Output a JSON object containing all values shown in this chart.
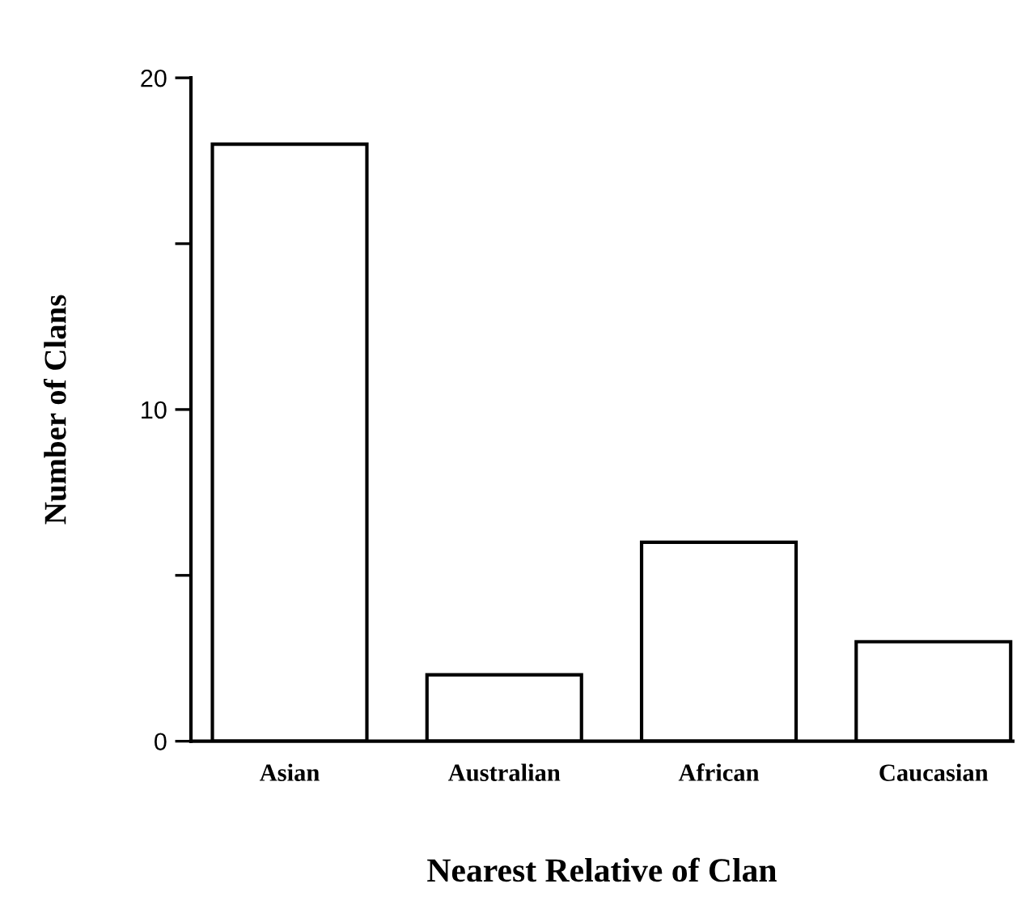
{
  "chart_data": {
    "type": "bar",
    "xlabel": "Nearest Relative of Clan",
    "ylabel": "Number of Clans",
    "categories": [
      "Asian",
      "Australian",
      "African",
      "Caucasian"
    ],
    "values": [
      18,
      2,
      6,
      3
    ],
    "color": "#ffffff",
    "ylim": [
      0,
      20
    ],
    "yticks": [
      0,
      {
        "value": 5,
        "label": null
      },
      10,
      {
        "value": 15,
        "label": null
      },
      20
    ],
    "grid": false,
    "legend": false
  }
}
